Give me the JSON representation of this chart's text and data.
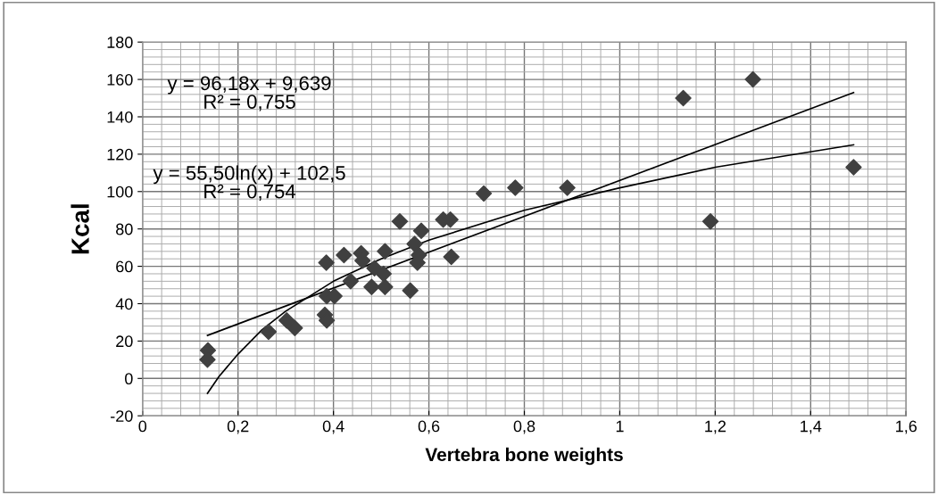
{
  "chart_data": {
    "type": "scatter",
    "xlabel": "Vertebra bone weights",
    "ylabel": "Kcal",
    "annotations": [
      "y = 96,18x + 9,639\nR² = 0,755",
      "y = 55,50ln(x) + 102,5\nR² = 0,754"
    ],
    "series": [
      {
        "color": "#404040",
        "marker": "diamond",
        "x": [
          0.137,
          0.136,
          0.264,
          0.302,
          0.319,
          0.382,
          0.386,
          0.385,
          0.386,
          0.402,
          0.422,
          0.436,
          0.458,
          0.461,
          0.48,
          0.486,
          0.505,
          0.508,
          0.508,
          0.539,
          0.561,
          0.584,
          0.57,
          0.579,
          0.576,
          0.63,
          0.645,
          0.647,
          0.715,
          0.781,
          0.89,
          1.133,
          1.279,
          1.19,
          1.49
        ],
        "values": [
          15,
          10,
          25,
          31,
          27,
          34,
          31,
          62,
          44,
          44,
          66,
          52,
          67,
          63,
          49,
          59,
          56,
          68,
          49,
          84,
          47,
          79,
          72,
          66,
          62,
          85,
          85,
          65,
          99,
          102,
          102,
          150,
          160,
          84,
          113
        ]
      },
      {
        "type": "line",
        "color": "#000000",
        "marker": "none",
        "line_style": "solid",
        "x": [
          0.136,
          1.49
        ],
        "values": [
          23,
          153
        ]
      },
      {
        "type": "line",
        "color": "#000000",
        "marker": "none",
        "line_style": "solid",
        "x": [
          0.136,
          0.16,
          0.2,
          0.25,
          0.3,
          0.4,
          0.5,
          0.6,
          0.8,
          1.0,
          1.2,
          1.49
        ],
        "values": [
          -8,
          1,
          13,
          26,
          36,
          52,
          64,
          74,
          90,
          102,
          113,
          125
        ]
      }
    ],
    "xlim": [
      0,
      1.6
    ],
    "ylim": [
      -20,
      180
    ],
    "xticks": [
      0,
      {
        "value": 0.2,
        "label": "0,2"
      },
      {
        "value": 0.4,
        "label": "0,4"
      },
      {
        "value": 0.6,
        "label": "0,6"
      },
      {
        "value": 0.8,
        "label": "0,8"
      },
      1,
      {
        "value": 1.2,
        "label": "1,2"
      },
      {
        "value": 1.4,
        "label": "1,4"
      },
      {
        "value": 1.6,
        "label": "1,6"
      }
    ],
    "yticks": [
      -20,
      0,
      20,
      40,
      60,
      80,
      100,
      120,
      140,
      160,
      180
    ],
    "grid": true,
    "legend": false
  }
}
